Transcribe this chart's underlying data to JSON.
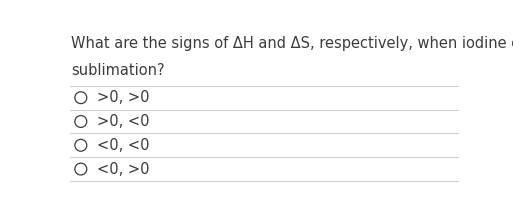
{
  "question_line1": "What are the signs of ΔH and ΔS, respectively, when iodine crystals undergo",
  "question_line2": "sublimation?",
  "options": [
    ">0, >0",
    ">0, <0",
    "<0, <0",
    "<0, >0"
  ],
  "bg_color": "#ffffff",
  "text_color": "#3c3c3c",
  "question_fontsize": 10.5,
  "option_fontsize": 10.5,
  "circle_color": "#3c3c3c",
  "line_color": "#d0d0d0"
}
